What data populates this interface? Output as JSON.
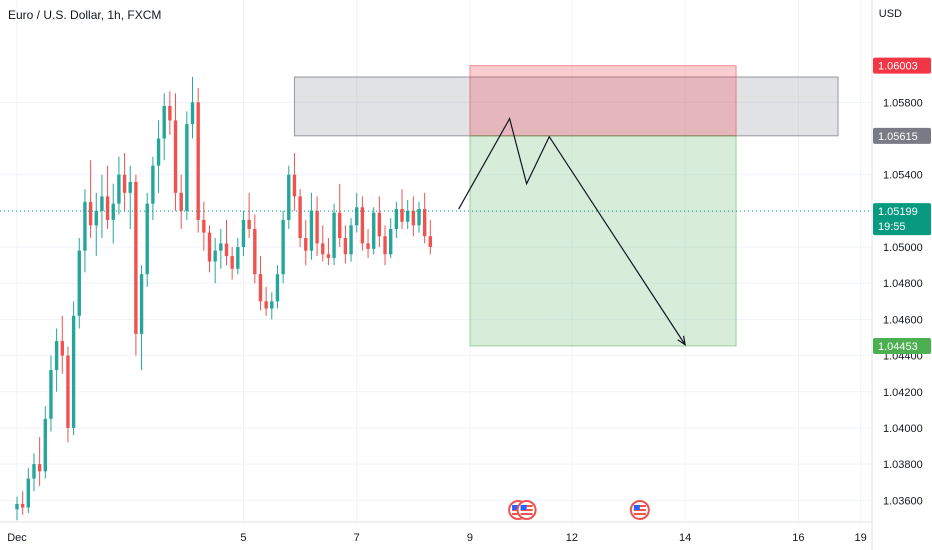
{
  "header": {
    "title": "Euro / U.S. Dollar, 1h, FXCM",
    "currency": "USD"
  },
  "colors": {
    "up": "#26a69a",
    "down": "#ef5350",
    "stop": "#f23645",
    "target": "#4caf50",
    "current": "#089981",
    "grey": "#787b86",
    "grid": "#f0f3fa",
    "axis_text": "#131722"
  },
  "chart_data": {
    "type": "candlestick",
    "symbol": "EURUSD",
    "ylim": [
      1.0348,
      1.062
    ],
    "y_ticks": [
      "1.03600",
      "1.03800",
      "1.04000",
      "1.04200",
      "1.04400",
      "1.04600",
      "1.04800",
      "1.05000",
      "1.05200",
      "1.05400",
      "1.05800"
    ],
    "x_ticks": [
      {
        "label": "Dec",
        "t": 0
      },
      {
        "label": "5",
        "t": 4
      },
      {
        "label": "7",
        "t": 6
      },
      {
        "label": "9",
        "t": 8
      },
      {
        "label": "12",
        "t": 9.8
      },
      {
        "label": "14",
        "t": 11.8
      },
      {
        "label": "16",
        "t": 13.8
      },
      {
        "label": "19",
        "t": 14.9
      }
    ],
    "price_labels": [
      {
        "name": "stop",
        "value": 1.06003,
        "text": "1.06003"
      },
      {
        "name": "resistance",
        "value": 1.05615,
        "text": "1.05615"
      },
      {
        "name": "current",
        "value": 1.05199,
        "text": "1.05199",
        "countdown": "19:55"
      },
      {
        "name": "target",
        "value": 1.04453,
        "text": "1.04453"
      }
    ],
    "zones": {
      "resistance": {
        "t_start": 4.9,
        "t_end": 14.5,
        "low": 1.05615,
        "high": 1.0594
      },
      "stop": {
        "t_start": 8.0,
        "t_end": 12.7,
        "low": 1.05615,
        "high": 1.06003
      },
      "target": {
        "t_start": 8.0,
        "t_end": 12.7,
        "low": 1.04453,
        "high": 1.05615
      }
    },
    "projection": [
      {
        "t": 7.8,
        "v": 1.0521
      },
      {
        "t": 8.7,
        "v": 1.0571
      },
      {
        "t": 9.0,
        "v": 1.0535
      },
      {
        "t": 9.4,
        "v": 1.0561
      },
      {
        "t": 11.8,
        "v": 1.0446
      }
    ],
    "event_markers": [
      {
        "t": 8.85
      },
      {
        "t": 9.0
      },
      {
        "t": 11.0
      }
    ],
    "candles": [
      [
        0.0,
        1.0355,
        1.0362,
        1.0349,
        1.0358
      ],
      [
        0.1,
        1.0358,
        1.0365,
        1.0352,
        1.0356
      ],
      [
        0.2,
        1.0356,
        1.0378,
        1.0353,
        1.0372
      ],
      [
        0.3,
        1.0372,
        1.0386,
        1.0365,
        1.038
      ],
      [
        0.4,
        1.038,
        1.0395,
        1.0368,
        1.0376
      ],
      [
        0.5,
        1.0376,
        1.0412,
        1.0372,
        1.0405
      ],
      [
        0.6,
        1.0405,
        1.044,
        1.0398,
        1.0432
      ],
      [
        0.7,
        1.0432,
        1.0455,
        1.042,
        1.0448
      ],
      [
        0.8,
        1.0448,
        1.0462,
        1.043,
        1.044
      ],
      [
        0.9,
        1.044,
        1.0445,
        1.0392,
        1.04
      ],
      [
        1.0,
        1.04,
        1.047,
        1.0396,
        1.0462
      ],
      [
        1.1,
        1.0462,
        1.0505,
        1.0455,
        1.0498
      ],
      [
        1.2,
        1.0498,
        1.0532,
        1.0486,
        1.0525
      ],
      [
        1.3,
        1.0525,
        1.0548,
        1.0505,
        1.0512
      ],
      [
        1.4,
        1.0512,
        1.053,
        1.0495,
        1.052
      ],
      [
        1.5,
        1.052,
        1.054,
        1.0505,
        1.0528
      ],
      [
        1.6,
        1.0528,
        1.0545,
        1.051,
        1.0515
      ],
      [
        1.7,
        1.0515,
        1.0535,
        1.0502,
        1.0524
      ],
      [
        1.8,
        1.0524,
        1.055,
        1.0518,
        1.054
      ],
      [
        1.9,
        1.054,
        1.0552,
        1.052,
        1.053
      ],
      [
        2.0,
        1.053,
        1.0545,
        1.051,
        1.0536
      ],
      [
        2.1,
        1.0536,
        1.054,
        1.044,
        1.0452
      ],
      [
        2.2,
        1.0452,
        1.049,
        1.0432,
        1.0485
      ],
      [
        2.3,
        1.0485,
        1.053,
        1.0478,
        1.0524
      ],
      [
        2.4,
        1.0524,
        1.055,
        1.0515,
        1.0545
      ],
      [
        2.5,
        1.0545,
        1.057,
        1.053,
        1.056
      ],
      [
        2.6,
        1.056,
        1.0585,
        1.0548,
        1.0578
      ],
      [
        2.7,
        1.0578,
        1.0586,
        1.0562,
        1.057
      ],
      [
        2.8,
        1.057,
        1.0585,
        1.052,
        1.053
      ],
      [
        2.9,
        1.053,
        1.054,
        1.051,
        1.052
      ],
      [
        3.0,
        1.052,
        1.0575,
        1.0515,
        1.0568
      ],
      [
        3.1,
        1.0568,
        1.0594,
        1.056,
        1.058
      ],
      [
        3.2,
        1.058,
        1.0588,
        1.0508,
        1.0515
      ],
      [
        3.3,
        1.0515,
        1.0525,
        1.0498,
        1.0508
      ],
      [
        3.4,
        1.0508,
        1.0512,
        1.0486,
        1.0492
      ],
      [
        3.5,
        1.0492,
        1.0505,
        1.048,
        1.0498
      ],
      [
        3.6,
        1.0498,
        1.051,
        1.0488,
        1.0502
      ],
      [
        3.7,
        1.0502,
        1.0515,
        1.049,
        1.0495
      ],
      [
        3.8,
        1.0495,
        1.05,
        1.0482,
        1.0488
      ],
      [
        3.9,
        1.0488,
        1.0505,
        1.0485,
        1.05
      ],
      [
        4.0,
        1.05,
        1.052,
        1.0495,
        1.0515
      ],
      [
        4.1,
        1.0515,
        1.053,
        1.0505,
        1.051
      ],
      [
        4.2,
        1.051,
        1.0518,
        1.048,
        1.0485
      ],
      [
        4.3,
        1.0485,
        1.0495,
        1.0465,
        1.047
      ],
      [
        4.4,
        1.047,
        1.0478,
        1.0462,
        1.0466
      ],
      [
        4.5,
        1.0466,
        1.0475,
        1.046,
        1.047
      ],
      [
        4.6,
        1.047,
        1.049,
        1.0466,
        1.0485
      ],
      [
        4.7,
        1.0485,
        1.052,
        1.048,
        1.0515
      ],
      [
        4.8,
        1.0515,
        1.0545,
        1.051,
        1.054
      ],
      [
        4.9,
        1.054,
        1.0552,
        1.052,
        1.0528
      ],
      [
        5.0,
        1.0528,
        1.0532,
        1.05,
        1.0505
      ],
      [
        5.1,
        1.0505,
        1.0515,
        1.049,
        1.0498
      ],
      [
        5.2,
        1.0498,
        1.053,
        1.0493,
        1.052
      ],
      [
        5.3,
        1.052,
        1.0528,
        1.0495,
        1.0502
      ],
      [
        5.4,
        1.0502,
        1.0512,
        1.0492,
        1.0496
      ],
      [
        5.5,
        1.0496,
        1.0505,
        1.049,
        1.0494
      ],
      [
        5.6,
        1.0494,
        1.0524,
        1.049,
        1.0519
      ],
      [
        5.7,
        1.0519,
        1.0535,
        1.05,
        1.0505
      ],
      [
        5.8,
        1.0505,
        1.0512,
        1.0491,
        1.0496
      ],
      [
        5.9,
        1.0496,
        1.0516,
        1.0492,
        1.0512
      ],
      [
        6.0,
        1.0512,
        1.053,
        1.0508,
        1.0522
      ],
      [
        6.1,
        1.0522,
        1.0528,
        1.0498,
        1.0502
      ],
      [
        6.2,
        1.0502,
        1.051,
        1.0494,
        1.0499
      ],
      [
        6.3,
        1.0499,
        1.0522,
        1.0496,
        1.0519
      ],
      [
        6.4,
        1.0519,
        1.0528,
        1.05,
        1.0506
      ],
      [
        6.5,
        1.0506,
        1.0512,
        1.049,
        1.0496
      ],
      [
        6.6,
        1.0496,
        1.0516,
        1.0494,
        1.051
      ],
      [
        6.7,
        1.051,
        1.0525,
        1.0505,
        1.0521
      ],
      [
        6.8,
        1.0521,
        1.0532,
        1.051,
        1.0514
      ],
      [
        6.9,
        1.0514,
        1.0526,
        1.051,
        1.052
      ],
      [
        7.0,
        1.052,
        1.0528,
        1.0506,
        1.0512
      ],
      [
        7.1,
        1.0512,
        1.0525,
        1.0508,
        1.0521
      ],
      [
        7.2,
        1.0521,
        1.053,
        1.0502,
        1.0506
      ],
      [
        7.3,
        1.0506,
        1.0515,
        1.0496,
        1.05
      ]
    ]
  }
}
